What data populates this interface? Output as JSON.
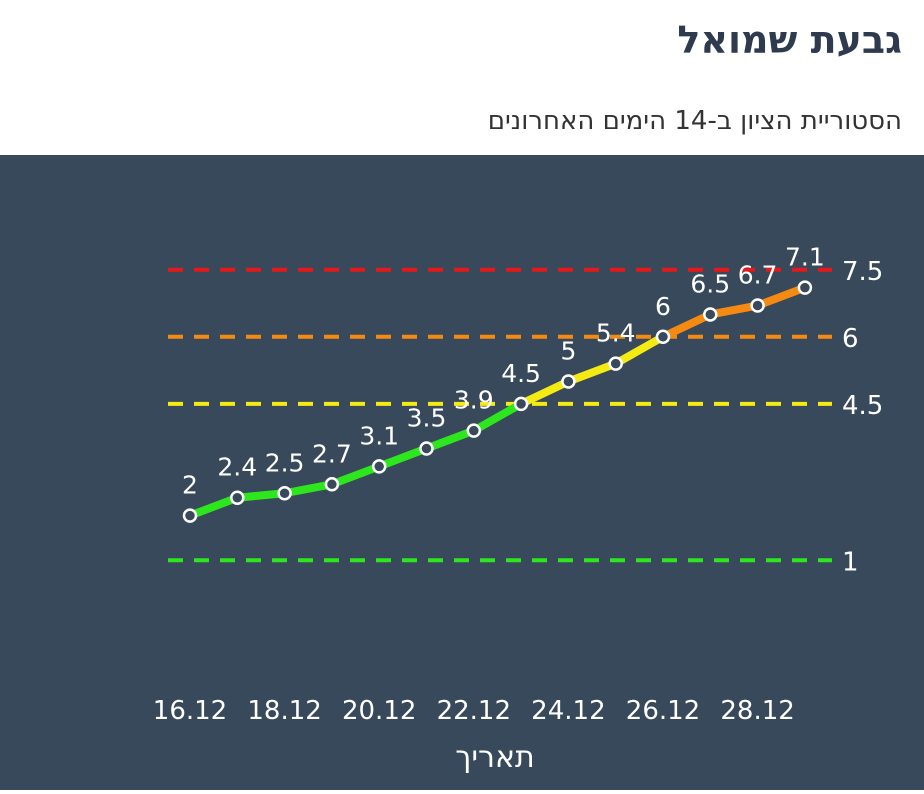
{
  "header": {
    "title": "גבעת שמואל",
    "subtitle": "הסטוריית הציון ב-14 הימים האחרונים"
  },
  "colors": {
    "panel_bg": "#37495a",
    "text": "#ffffff",
    "green": "#2ee61e",
    "yellow": "#f4ea14",
    "orange": "#f58a12",
    "red": "#e51919"
  },
  "chart_data": {
    "type": "line",
    "x": [
      "16.12",
      "17.12",
      "18.12",
      "19.12",
      "20.12",
      "21.12",
      "22.12",
      "23.12",
      "24.12",
      "25.12",
      "26.12",
      "27.12",
      "28.12",
      "29.12"
    ],
    "values": [
      2,
      2.4,
      2.5,
      2.7,
      3.1,
      3.5,
      3.9,
      4.5,
      5,
      5.4,
      6,
      6.5,
      6.7,
      7.1
    ],
    "value_labels": [
      "2",
      "2.4",
      "2.5",
      "2.7",
      "3.1",
      "3.5",
      "3.9",
      "4.5",
      "5",
      "5.4",
      "6",
      "6.5",
      "6.7",
      "7.1"
    ],
    "x_tick_labels": [
      "16.12",
      "18.12",
      "20.12",
      "22.12",
      "24.12",
      "26.12",
      "28.12"
    ],
    "xlabel": "תאריך",
    "ylabel": "",
    "thresholds": [
      {
        "value": 1,
        "label": "1",
        "color": "#2ee61e"
      },
      {
        "value": 4.5,
        "label": "4.5",
        "color": "#f4ea14"
      },
      {
        "value": 6,
        "label": "6",
        "color": "#f58a12"
      },
      {
        "value": 7.5,
        "label": "7.5",
        "color": "#e51919"
      }
    ],
    "grid": false,
    "legend": "none"
  }
}
